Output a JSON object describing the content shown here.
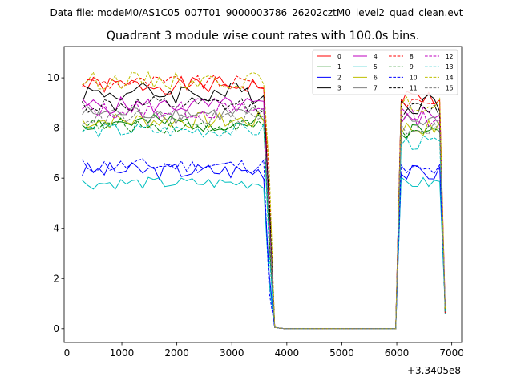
{
  "header": {
    "data_file": "Data file: modeM0/AS1C05_007T01_9000003786_26202cztM0_level2_quad_clean.evt"
  },
  "chart_data": {
    "type": "line",
    "title": "Quadrant 3 module wise count rates with 100.0s bins.",
    "xlabel": "",
    "ylabel": "",
    "x_offset_label": "+3.3405e8",
    "xlim": [
      -50,
      7180
    ],
    "ylim": [
      -0.55,
      11.25
    ],
    "xticks": [
      0,
      1000,
      2000,
      3000,
      4000,
      5000,
      6000,
      7000
    ],
    "xtick_labels": [
      "0",
      "1000",
      "2000",
      "3000",
      "4000",
      "5000",
      "6000",
      "7000"
    ],
    "yticks": [
      0,
      2,
      4,
      6,
      8,
      10
    ],
    "ytick_labels": [
      "0",
      "2",
      "4",
      "6",
      "8",
      "10"
    ],
    "legend_location": "top-right",
    "legend_columns": 4,
    "x_first": 280,
    "x_step": 100,
    "n_on1": 36,
    "n_gap": 22,
    "n_on2": 9,
    "series": [
      {
        "name": "0",
        "color": "#ff0000",
        "dash": false,
        "level": 9.7,
        "amp": 0.35,
        "seed": 1,
        "on2_level": 9.2
      },
      {
        "name": "1",
        "color": "#008000",
        "dash": false,
        "level": 8.2,
        "amp": 0.35,
        "seed": 2,
        "on2_level": 7.9
      },
      {
        "name": "2",
        "color": "#0000ff",
        "dash": false,
        "level": 6.3,
        "amp": 0.35,
        "seed": 3,
        "on2_level": 6.2
      },
      {
        "name": "3",
        "color": "#000000",
        "dash": false,
        "level": 9.4,
        "amp": 0.45,
        "seed": 4,
        "on2_level": 9.0
      },
      {
        "name": "4",
        "color": "#bf00bf",
        "dash": false,
        "level": 8.9,
        "amp": 0.35,
        "seed": 5,
        "on2_level": 8.6
      },
      {
        "name": "5",
        "color": "#00bfbf",
        "dash": false,
        "level": 5.8,
        "amp": 0.25,
        "seed": 6,
        "on2_level": 5.8
      },
      {
        "name": "6",
        "color": "#bfbf00",
        "dash": false,
        "level": 8.3,
        "amp": 0.35,
        "seed": 7,
        "on2_level": 8.0
      },
      {
        "name": "7",
        "color": "#808080",
        "dash": false,
        "level": 8.6,
        "amp": 0.3,
        "seed": 8,
        "on2_level": 8.3
      },
      {
        "name": "8",
        "color": "#ff0000",
        "dash": true,
        "level": 9.8,
        "amp": 0.3,
        "seed": 9,
        "on2_level": 9.1
      },
      {
        "name": "9",
        "color": "#008000",
        "dash": true,
        "level": 8.1,
        "amp": 0.3,
        "seed": 10,
        "on2_level": 7.8
      },
      {
        "name": "10",
        "color": "#0000ff",
        "dash": true,
        "level": 6.5,
        "amp": 0.3,
        "seed": 11,
        "on2_level": 6.3
      },
      {
        "name": "11",
        "color": "#000000",
        "dash": true,
        "level": 8.9,
        "amp": 0.35,
        "seed": 12,
        "on2_level": 8.7
      },
      {
        "name": "12",
        "color": "#bf00bf",
        "dash": true,
        "level": 8.7,
        "amp": 0.35,
        "seed": 13,
        "on2_level": 8.4
      },
      {
        "name": "13",
        "color": "#00bfbf",
        "dash": true,
        "level": 7.9,
        "amp": 0.3,
        "seed": 14,
        "on2_level": 7.4
      },
      {
        "name": "14",
        "color": "#bfbf00",
        "dash": true,
        "level": 9.9,
        "amp": 0.35,
        "seed": 15,
        "on2_level": 8.9
      },
      {
        "name": "15",
        "color": "#808080",
        "dash": true,
        "level": 8.4,
        "amp": 0.3,
        "seed": 16,
        "on2_level": 8.0
      }
    ]
  }
}
